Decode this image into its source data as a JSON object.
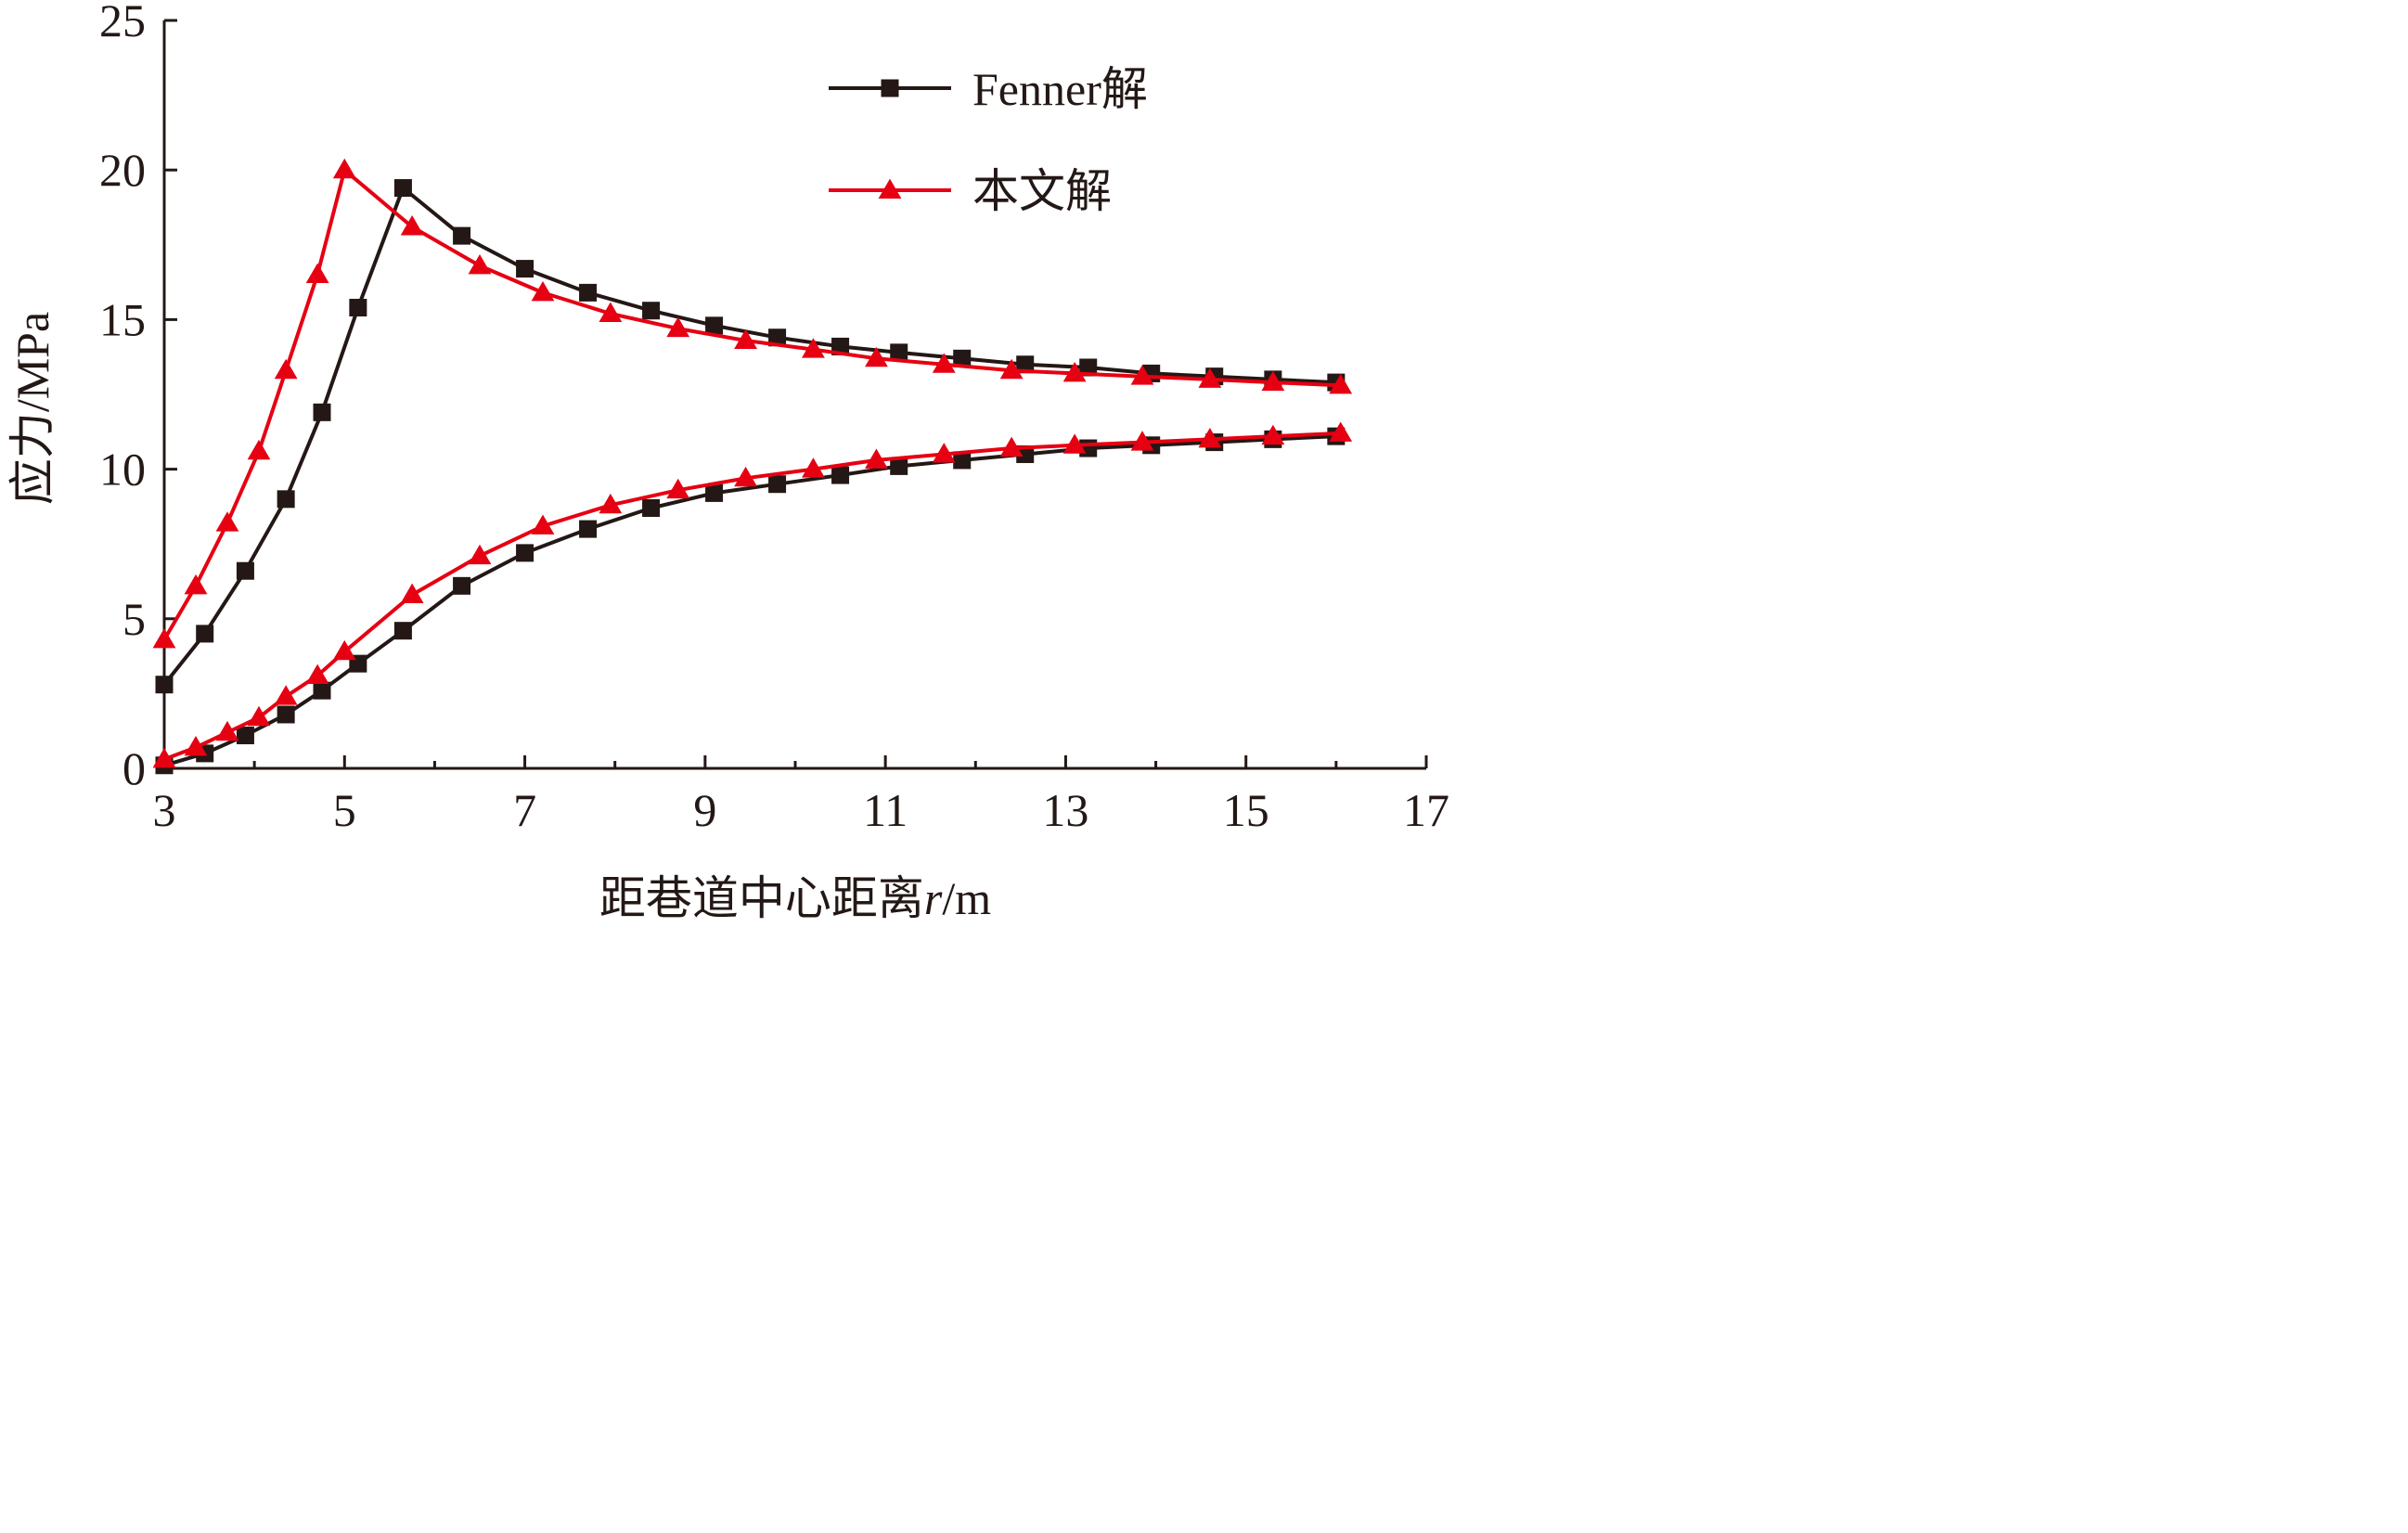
{
  "chart_data": {
    "type": "line",
    "title": "",
    "xlabel": "距巷道中心距离",
    "xlabel_var": "r",
    "xlabel_unit": "/m",
    "ylabel": "应力/MPa",
    "xlim": [
      3,
      17
    ],
    "ylim": [
      0,
      25
    ],
    "x_ticks": [
      "3",
      "5",
      "7",
      "9",
      "11",
      "13",
      "15",
      "17"
    ],
    "y_ticks": [
      "0",
      "5",
      "10",
      "15",
      "20",
      "25"
    ],
    "legend_position": "top-right",
    "series": [
      {
        "name": "Fenner解",
        "color": "#231815",
        "marker": "square",
        "upper": {
          "x": [
            3.0,
            3.45,
            3.9,
            4.35,
            4.75,
            5.15,
            5.65,
            6.3,
            7.0,
            7.7,
            8.4,
            9.1,
            9.8,
            10.5,
            11.15,
            11.85,
            12.55,
            13.25,
            13.95,
            14.65,
            15.3,
            16.0
          ],
          "y": [
            2.8,
            4.5,
            6.6,
            9.0,
            11.9,
            15.4,
            19.4,
            17.8,
            16.7,
            15.9,
            15.3,
            14.8,
            14.4,
            14.1,
            13.9,
            13.7,
            13.5,
            13.4,
            13.2,
            13.1,
            13.0,
            12.9
          ]
        },
        "lower": {
          "x": [
            3.0,
            3.45,
            3.9,
            4.35,
            4.75,
            5.15,
            5.65,
            6.3,
            7.0,
            7.7,
            8.4,
            9.1,
            9.8,
            10.5,
            11.15,
            11.85,
            12.55,
            13.25,
            13.95,
            14.65,
            15.3,
            16.0
          ],
          "y": [
            0.1,
            0.5,
            1.1,
            1.8,
            2.6,
            3.5,
            4.6,
            6.1,
            7.2,
            8.0,
            8.7,
            9.2,
            9.5,
            9.8,
            10.1,
            10.3,
            10.5,
            10.7,
            10.8,
            10.9,
            11.0,
            11.1
          ]
        }
      },
      {
        "name": "本文解",
        "color": "#e60012",
        "marker": "triangle",
        "upper": {
          "x": [
            3.0,
            3.35,
            3.7,
            4.05,
            4.35,
            4.7,
            5.0,
            5.75,
            6.5,
            7.2,
            7.95,
            8.7,
            9.45,
            10.2,
            10.9,
            11.65,
            12.4,
            13.1,
            13.85,
            14.6,
            15.3,
            16.05
          ],
          "y": [
            4.3,
            6.1,
            8.2,
            10.6,
            13.3,
            16.5,
            20.0,
            18.1,
            16.8,
            15.9,
            15.2,
            14.7,
            14.3,
            14.0,
            13.7,
            13.5,
            13.3,
            13.2,
            13.1,
            13.0,
            12.9,
            12.8
          ]
        },
        "lower": {
          "x": [
            3.0,
            3.35,
            3.7,
            4.05,
            4.35,
            4.7,
            5.0,
            5.75,
            6.5,
            7.2,
            7.95,
            8.7,
            9.45,
            10.2,
            10.9,
            11.65,
            12.4,
            13.1,
            13.85,
            14.6,
            15.3,
            16.05
          ],
          "y": [
            0.3,
            0.7,
            1.2,
            1.7,
            2.4,
            3.1,
            3.9,
            5.8,
            7.1,
            8.1,
            8.8,
            9.3,
            9.7,
            10.0,
            10.3,
            10.5,
            10.7,
            10.8,
            10.9,
            11.0,
            11.1,
            11.2
          ]
        }
      }
    ]
  }
}
